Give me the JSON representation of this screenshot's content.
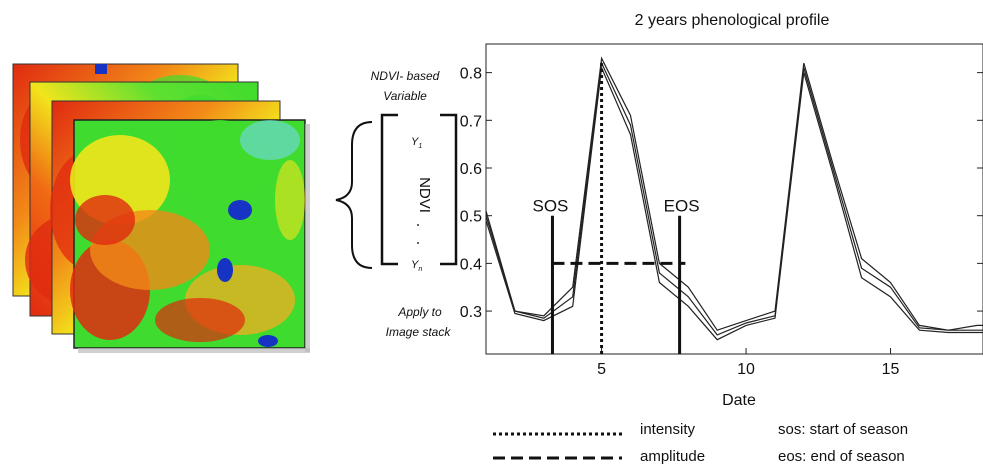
{
  "colors": {
    "ndvi_low": "#e02a10",
    "ndvi_mid": "#f2e41c",
    "ndvi_high": "#3fdb2e",
    "water": "#1733c4",
    "curve": "#222222"
  },
  "left_panel": {
    "variable_label_line1": "NDVI- based",
    "variable_label_line2": "Variable",
    "vector_name": "NDVI",
    "vector_first": "Y",
    "vector_first_sub": "1",
    "vector_last": "Y",
    "vector_last_sub": "n",
    "apply_label_line1": "Apply to",
    "apply_label_line2": "Image stack"
  },
  "chart_data": {
    "type": "line",
    "title": "2 years phenological profile",
    "xlabel": "Date",
    "ylabel": "",
    "xlim": [
      1,
      18.2
    ],
    "ylim": [
      0.21,
      0.86
    ],
    "x_ticks": [
      5,
      10,
      15
    ],
    "y_ticks": [
      0.3,
      0.4,
      0.5,
      0.6,
      0.7,
      0.8
    ],
    "y_tick_labels": [
      "0.3",
      "0.4",
      "0.5",
      "0.6",
      "0.7",
      "0.8"
    ],
    "x": [
      1,
      2,
      3,
      4,
      5,
      6,
      7,
      8,
      9,
      10,
      11,
      12,
      13,
      14,
      15,
      16,
      17,
      18,
      18.2
    ],
    "series": [
      {
        "values": [
          0.51,
          0.3,
          0.29,
          0.35,
          0.83,
          0.71,
          0.4,
          0.35,
          0.26,
          0.28,
          0.3,
          0.82,
          0.61,
          0.41,
          0.36,
          0.27,
          0.26,
          0.27,
          0.27
        ]
      },
      {
        "values": [
          0.5,
          0.3,
          0.285,
          0.33,
          0.82,
          0.69,
          0.38,
          0.33,
          0.25,
          0.275,
          0.29,
          0.81,
          0.6,
          0.39,
          0.35,
          0.265,
          0.26,
          0.26,
          0.26
        ]
      },
      {
        "values": [
          0.49,
          0.295,
          0.28,
          0.31,
          0.81,
          0.67,
          0.36,
          0.31,
          0.24,
          0.27,
          0.285,
          0.8,
          0.59,
          0.37,
          0.33,
          0.26,
          0.255,
          0.255,
          0.255
        ]
      }
    ],
    "annotations": {
      "sos": {
        "label": "SOS",
        "x": 3.3,
        "top": 0.5
      },
      "eos": {
        "label": "EOS",
        "x": 7.7,
        "top": 0.5
      },
      "intensity": {
        "x": 5.0,
        "bottom": 0.4,
        "top": 0.82
      },
      "amplitude": {
        "x_start": 3.3,
        "x_end": 7.9,
        "y": 0.4
      }
    },
    "legend": {
      "placement": "bottom",
      "items": [
        {
          "style": "dotted",
          "label": "intensity"
        },
        {
          "style": "dashed",
          "label": "amplitude"
        }
      ],
      "notes": [
        "sos: start of season",
        "eos: end of season"
      ]
    }
  }
}
